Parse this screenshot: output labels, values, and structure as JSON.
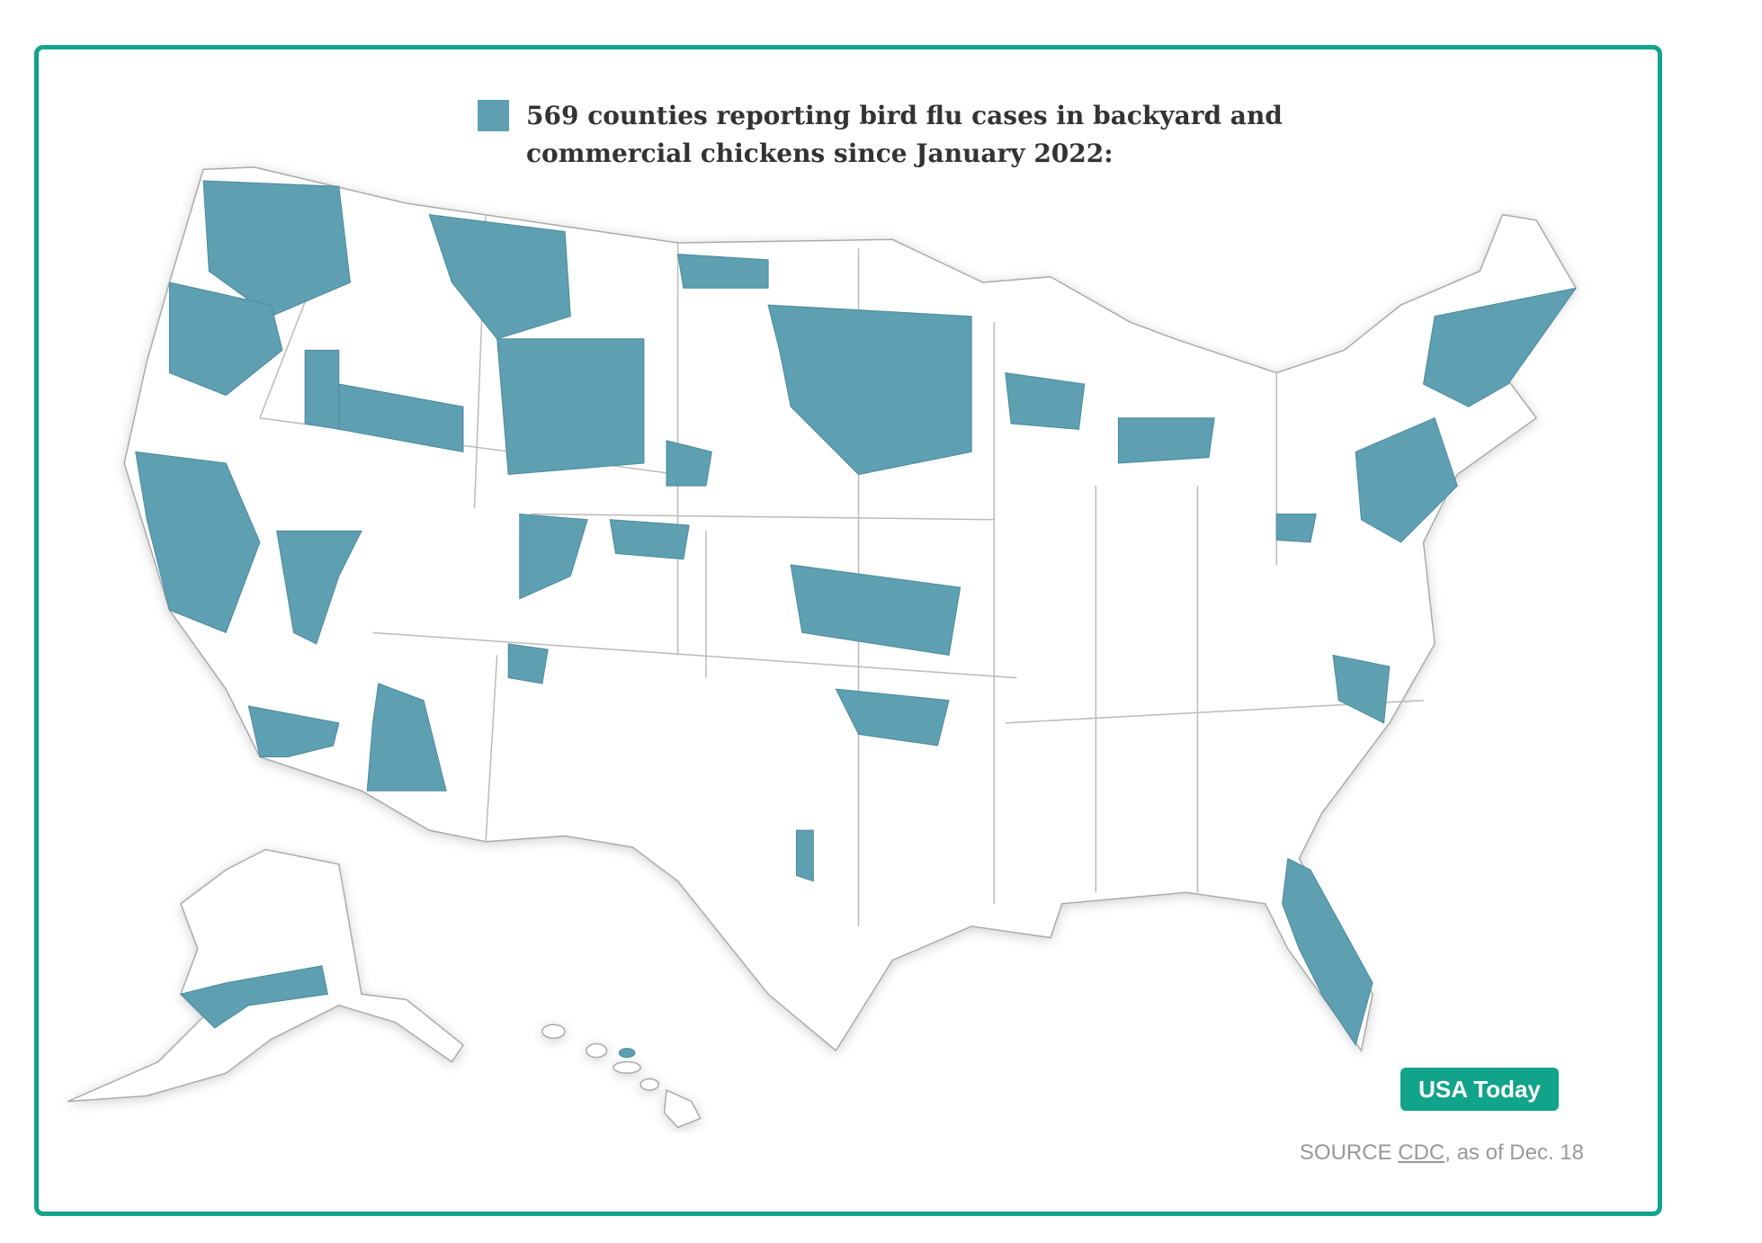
{
  "legend": {
    "label": "569 counties reporting bird flu cases in backyard and commercial chickens since January 2022:"
  },
  "badge": "USA Today",
  "source": {
    "prefix": "SOURCE",
    "link": "CDC",
    "suffix": ", as of Dec. 18"
  }
}
